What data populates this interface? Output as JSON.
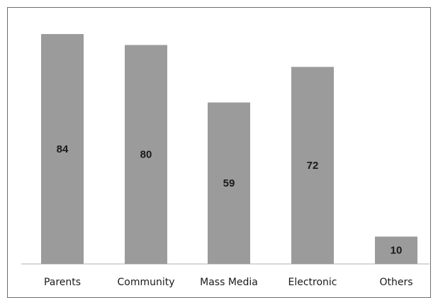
{
  "chart_data": {
    "type": "bar",
    "title": "",
    "xlabel": "",
    "ylabel": "",
    "categories": [
      "Parents",
      "Community",
      "Mass Media",
      "Electronic",
      "Others"
    ],
    "values": [
      84,
      80,
      59,
      72,
      10
    ],
    "data_labels": [
      "84",
      "80",
      "59",
      "72",
      "10"
    ],
    "ylim": [
      0,
      90
    ],
    "grid": false,
    "legend": "none",
    "bar_color": "#9b9b9b"
  }
}
